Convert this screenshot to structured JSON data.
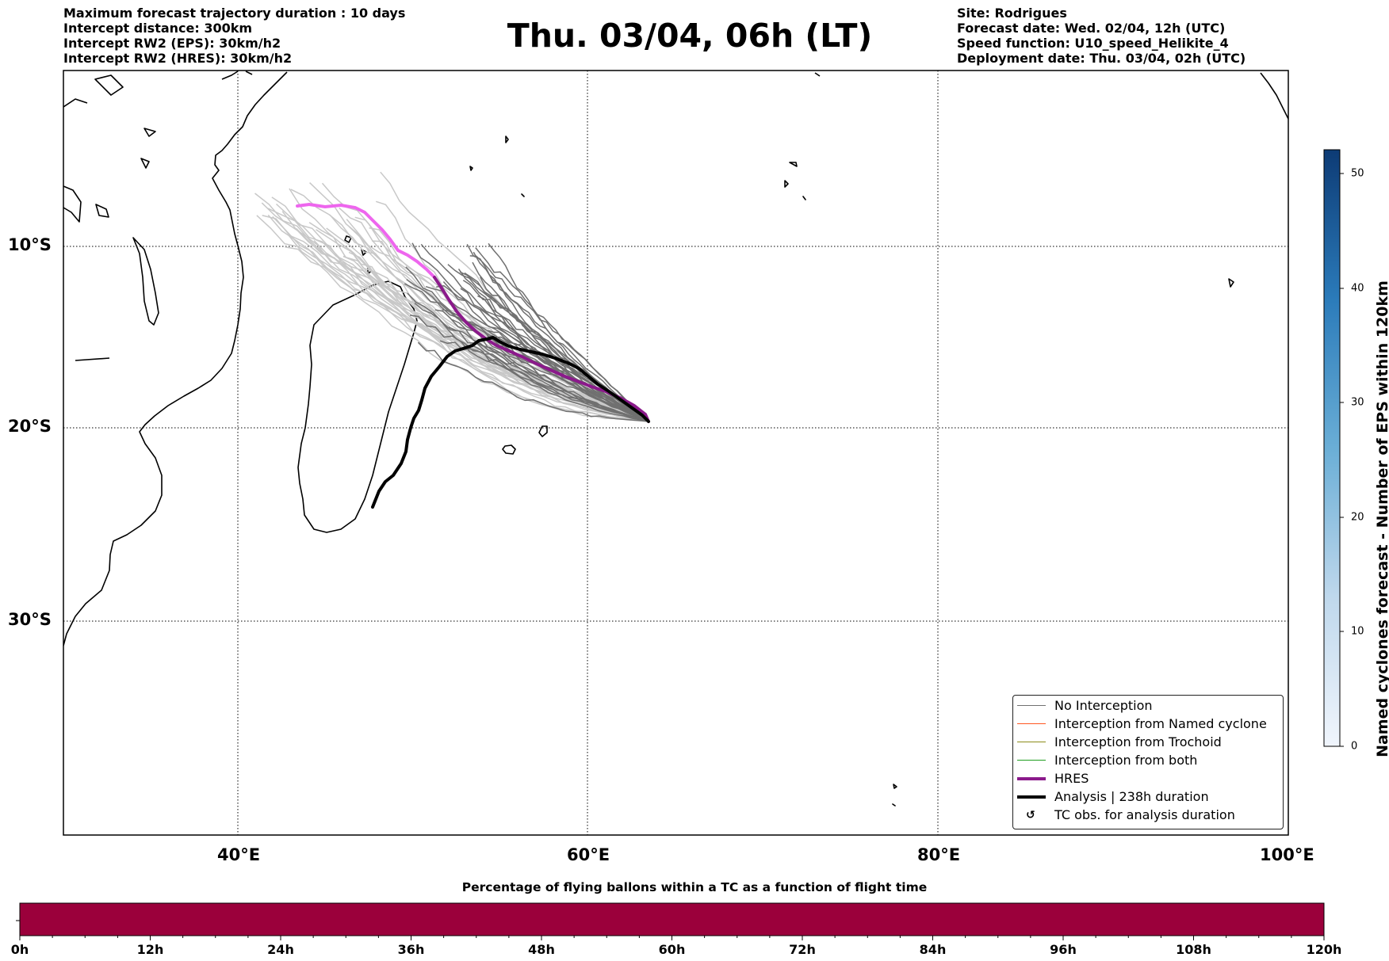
{
  "header": {
    "left_lines": [
      "Maximum forecast trajectory duration : 10 days",
      "Intercept distance: 300km",
      "Intercept RW2 (EPS):  30km/h2",
      "Intercept RW2 (HRES): 30km/h2"
    ],
    "title": "Thu. 03/04, 06h (LT)",
    "right_lines": [
      "Site: Rodrigues",
      "Forecast date: Wed. 02/04, 12h (UTC)",
      "Speed function: U10_speed_Helikite_4",
      "Deployment date: Thu. 03/04, 02h (UTC)"
    ]
  },
  "map": {
    "lat_labels": [
      "10°S",
      "20°S",
      "30°S"
    ],
    "lon_labels": [
      "40°E",
      "60°E",
      "80°E",
      "100°E"
    ]
  },
  "legend": {
    "items": [
      {
        "label": "No Interception",
        "color": "#707070",
        "width": 1
      },
      {
        "label": "Interception from Named cyclone",
        "color": "#ff5722",
        "width": 1
      },
      {
        "label": "Interception from Trochoid",
        "color": "#8b8b1a",
        "width": 1
      },
      {
        "label": "Interception from both",
        "color": "#1f9e1f",
        "width": 1
      },
      {
        "label": "HRES",
        "color": "#8b1a8b",
        "width": 4
      },
      {
        "label": "Analysis | 238h duration",
        "color": "#000000",
        "width": 4
      }
    ],
    "tc_obs_label": "TC obs. for analysis duration",
    "tc_obs_icon": "cyclone-icon"
  },
  "colorbar": {
    "label": "Named cyclones forecast - Number of EPS within 120km",
    "ticks": [
      "50",
      "40",
      "30",
      "20",
      "10",
      "0"
    ],
    "color_low": "#f0f5fc",
    "color_high": "#0d3b75"
  },
  "bottom_bar": {
    "title": "Percentage of flying ballons within a TC as a function of flight time",
    "ticks": [
      "0h",
      "12h",
      "24h",
      "36h",
      "48h",
      "60h",
      "72h",
      "84h",
      "96h",
      "108h",
      "120h"
    ],
    "fill_color": "#9b003b"
  },
  "tracks": {
    "eps_color_light": "#c8c8c8",
    "eps_color_dark": "#707070",
    "hres_color": "#8b1a8b",
    "hres_future_color": "#ee66ee",
    "analysis_color": "#000000"
  }
}
